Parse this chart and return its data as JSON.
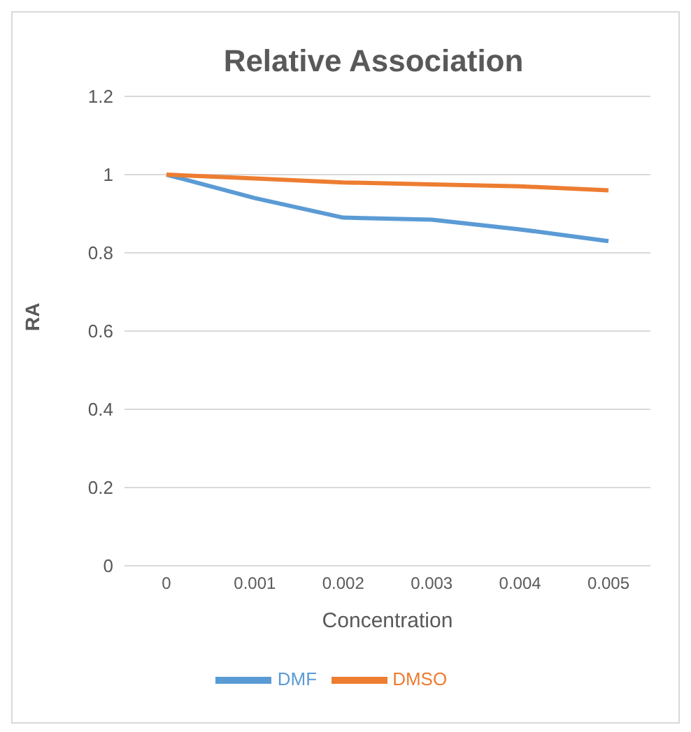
{
  "chart_data": {
    "type": "line",
    "title": "Relative Association",
    "xlabel": "Concentration",
    "ylabel": "RA",
    "categories": [
      "0",
      "0.001",
      "0.002",
      "0.003",
      "0.004",
      "0.005"
    ],
    "series": [
      {
        "name": "DMF",
        "color": "#5b9bd5",
        "values": [
          1,
          0.94,
          0.89,
          0.885,
          0.86,
          0.83
        ]
      },
      {
        "name": "DMSO",
        "color": "#ed7d31",
        "values": [
          1,
          0.99,
          0.98,
          0.975,
          0.97,
          0.96
        ]
      }
    ],
    "ylim": [
      0,
      1.2
    ],
    "yticks": [
      0,
      0.2,
      0.4,
      0.6,
      0.8,
      1,
      1.2
    ],
    "grid": "y",
    "legend": "bottom",
    "marker": "none",
    "line_style": "solid"
  }
}
